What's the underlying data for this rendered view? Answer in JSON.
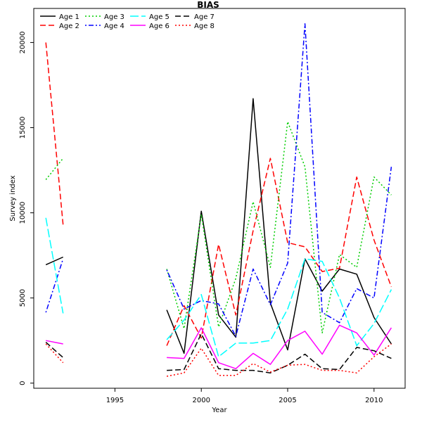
{
  "chart_data": {
    "type": "line",
    "title": "BIAS",
    "xlabel": "Year",
    "ylabel": "Survey index",
    "xlim": [
      1990.3,
      2011.8
    ],
    "ylim": [
      -300,
      22000
    ],
    "xticks": [
      1995,
      2000,
      2005,
      2010
    ],
    "yticks": [
      0,
      5000,
      10000,
      15000,
      20000
    ],
    "legend_position": "top-left",
    "x": [
      1991,
      1992,
      1993,
      1994,
      1995,
      1996,
      1997,
      1998,
      1999,
      2000,
      2001,
      2002,
      2003,
      2004,
      2005,
      2006,
      2007,
      2008,
      2009,
      2010,
      2011
    ],
    "series": [
      {
        "name": "Age 1",
        "color": "#000000",
        "dash": "solid",
        "values": [
          6950,
          7400,
          null,
          null,
          null,
          null,
          null,
          4300,
          1750,
          10100,
          4000,
          2700,
          16700,
          4700,
          1950,
          7300,
          5400,
          6700,
          6400,
          3850,
          2300
        ]
      },
      {
        "name": "Age 2",
        "color": "#ff0000",
        "dash": "dashed",
        "values": [
          20000,
          9300,
          null,
          null,
          null,
          null,
          null,
          2200,
          4550,
          2650,
          8150,
          4000,
          8950,
          13200,
          8250,
          8000,
          6550,
          6750,
          12100,
          8400,
          5650
        ]
      },
      {
        "name": "Age 3",
        "color": "#00cd00",
        "dash": "dotted",
        "values": [
          11950,
          13200,
          null,
          null,
          null,
          null,
          null,
          6700,
          3200,
          9900,
          3300,
          6150,
          10650,
          6800,
          15350,
          12700,
          2950,
          7550,
          6800,
          12100,
          11050
        ]
      },
      {
        "name": "Age 4",
        "color": "#0000ff",
        "dash": "dotdash",
        "values": [
          4150,
          7300,
          null,
          null,
          null,
          null,
          null,
          6650,
          4350,
          4850,
          4650,
          2750,
          6700,
          4600,
          7050,
          21100,
          4150,
          3550,
          5550,
          5000,
          12700
        ]
      },
      {
        "name": "Age 5",
        "color": "#00ffff",
        "dash": "longdash",
        "values": [
          9700,
          4100,
          null,
          null,
          null,
          null,
          null,
          2550,
          3700,
          5200,
          1550,
          2350,
          2350,
          2500,
          4350,
          7300,
          7150,
          5000,
          2200,
          3500,
          5500
        ]
      },
      {
        "name": "Age 6",
        "color": "#ff00ff",
        "dash": "solid",
        "values": [
          2500,
          2300,
          null,
          null,
          null,
          null,
          null,
          1500,
          1450,
          3250,
          1200,
          850,
          1750,
          1100,
          2500,
          3050,
          1700,
          3400,
          2950,
          1650,
          3250
        ]
      },
      {
        "name": "Age 7",
        "color": "#000000",
        "dash": "dashed",
        "values": [
          2400,
          1500,
          null,
          null,
          null,
          null,
          null,
          750,
          800,
          2900,
          850,
          750,
          750,
          600,
          1050,
          1700,
          850,
          800,
          2100,
          1900,
          1450
        ]
      },
      {
        "name": "Age 8",
        "color": "#ff0000",
        "dash": "dotted",
        "values": [
          2300,
          1200,
          null,
          null,
          null,
          null,
          null,
          400,
          600,
          2050,
          450,
          450,
          1150,
          650,
          1050,
          1100,
          750,
          750,
          600,
          1550,
          2300
        ]
      }
    ]
  }
}
